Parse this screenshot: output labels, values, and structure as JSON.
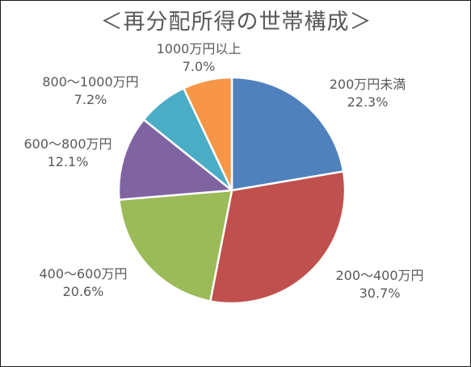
{
  "chart_data": {
    "type": "pie",
    "title": "＜再分配所得の世帯構成＞",
    "slices": [
      {
        "label": "200万円未満",
        "pct_label": "22.3%",
        "value": 22.3,
        "color": "#4f81bd"
      },
      {
        "label": "200～400万円",
        "pct_label": "30.7%",
        "value": 30.7,
        "color": "#c0504d"
      },
      {
        "label": "400～600万円",
        "pct_label": "20.6%",
        "value": 20.6,
        "color": "#9bbb59"
      },
      {
        "label": "600～800万円",
        "pct_label": "12.1%",
        "value": 12.1,
        "color": "#8064a2"
      },
      {
        "label": "800～1000万円",
        "pct_label": "7.2%",
        "value": 7.2,
        "color": "#4bacc6"
      },
      {
        "label": "1000万円以上",
        "pct_label": "7.0%",
        "value": 7.0,
        "color": "#f79646"
      }
    ],
    "start": "12 o'clock",
    "direction": "clockwise",
    "legend": "none",
    "labels": "outside"
  }
}
